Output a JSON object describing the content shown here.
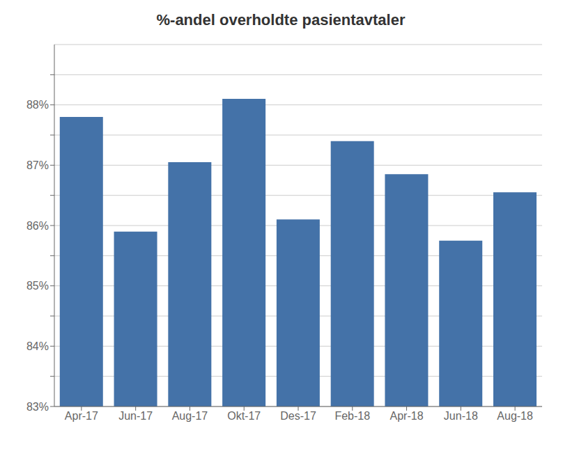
{
  "chart_data": {
    "type": "bar",
    "title": "%-andel overholdte pasientavtaler",
    "categories": [
      "Apr-17",
      "Jun-17",
      "Aug-17",
      "Okt-17",
      "Des-17",
      "Feb-18",
      "Apr-18",
      "Jun-18",
      "Aug-18"
    ],
    "values": [
      87.8,
      85.9,
      87.05,
      88.1,
      86.1,
      87.4,
      86.85,
      85.75,
      86.55
    ],
    "color": "#4472A8",
    "ylim": [
      83.0,
      89.0
    ],
    "yticks": [
      {
        "value": 83,
        "label": "83%"
      },
      {
        "value": 83.5,
        "label": ""
      },
      {
        "value": 84,
        "label": "84%"
      },
      {
        "value": 84.5,
        "label": ""
      },
      {
        "value": 85,
        "label": "85%"
      },
      {
        "value": 85.5,
        "label": ""
      },
      {
        "value": 86,
        "label": "86%"
      },
      {
        "value": 86.5,
        "label": ""
      },
      {
        "value": 87,
        "label": "87%"
      },
      {
        "value": 87.5,
        "label": ""
      },
      {
        "value": 88,
        "label": "88%"
      },
      {
        "value": 88.5,
        "label": ""
      }
    ],
    "grid": true
  }
}
